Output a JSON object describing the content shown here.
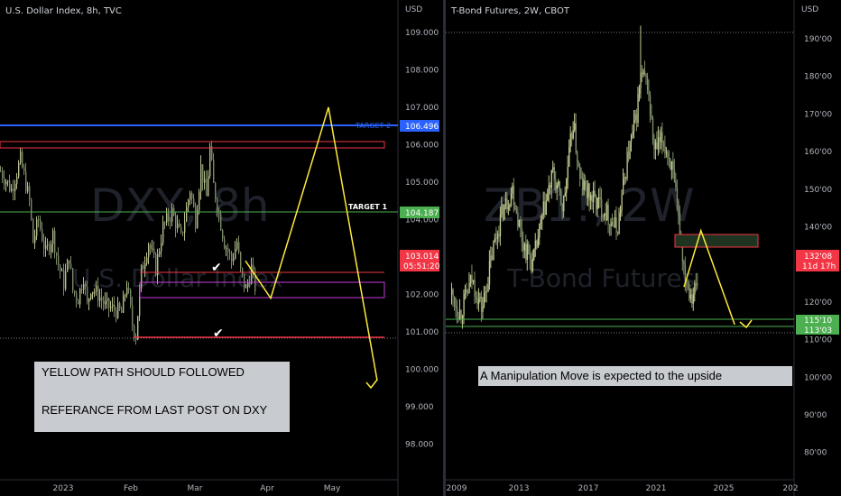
{
  "left_chart": {
    "title": "U.S. Dollar Index, 8h, TVC",
    "currency": "USD",
    "watermark": "DXY, 8h",
    "watermark_sub": "U.S. Dollar Index",
    "y_ticks": [
      "109.000",
      "108.000",
      "107.000",
      "106.000",
      "105.000",
      "104.000",
      "103.000",
      "102.000",
      "101.000",
      "100.000",
      "99.000",
      "98.000"
    ],
    "x_ticks": [
      "2023",
      "Feb",
      "Mar",
      "Apr",
      "May"
    ],
    "target2_label": "TARGET  2",
    "target2_price": "106.496",
    "target1_label": "TARGET  1",
    "target1_price": "104.187",
    "last_price": "103.014",
    "countdown": "05:51:20",
    "note_line1": "YELLOW PATH SHOULD FOLLOWED",
    "note_line2": "REFERANCE FROM LAST POST ON DXY",
    "colors": {
      "target2": "#2962ff",
      "target1": "#4caf50",
      "last": "#f23645",
      "path": "#ffeb3b",
      "zone": "#9c27b0"
    }
  },
  "right_chart": {
    "title": "T-Bond Futures, 2W, CBOT",
    "currency": "USD",
    "watermark": "ZB1!, 2W",
    "watermark_sub": "T-Bond Futures",
    "y_ticks": [
      "190'00",
      "180'00",
      "170'00",
      "160'00",
      "150'00",
      "140'00",
      "130'00",
      "120'00",
      "110'00",
      "100'00",
      "90'00",
      "80'00"
    ],
    "x_ticks": [
      "2009",
      "2013",
      "2017",
      "2021",
      "2025",
      "202"
    ],
    "last_price": "132'08",
    "countdown": "11d 17h",
    "level1": "115'10",
    "level2": "113'03",
    "note": "A Manipulation Move is expected to the upside",
    "colors": {
      "level": "#4caf50",
      "last": "#f23645",
      "path": "#ffeb3b"
    }
  },
  "chart_data": [
    {
      "type": "line",
      "title": "U.S. Dollar Index, 8h, TVC",
      "ylabel": "USD",
      "ylim": [
        97.3,
        109.5
      ],
      "categories": [
        "2023",
        "Feb",
        "Mar",
        "Apr",
        "May"
      ],
      "series": [
        {
          "name": "",
          "x": [
            0,
            12,
            22,
            32,
            36,
            42,
            50,
            58,
            64,
            70,
            76,
            80,
            86,
            92,
            96,
            100,
            108,
            116,
            126,
            134,
            140,
            146,
            150,
            152,
            156,
            164,
            172,
            180,
            190,
            200,
            210,
            216,
            222,
            228,
            232,
            236,
            240,
            248,
            256,
            262,
            266,
            272,
            278,
            282
          ],
          "y": [
            105.3,
            104.8,
            105.6,
            104.5,
            103.4,
            104.0,
            103.1,
            103.6,
            102.8,
            102.3,
            103.0,
            102.1,
            101.9,
            102.5,
            101.7,
            102.2,
            102.0,
            101.7,
            101.6,
            101.5,
            102.3,
            101.2,
            100.9,
            101.5,
            102.6,
            103.4,
            102.7,
            103.8,
            104.2,
            103.5,
            104.8,
            104.0,
            105.4,
            104.6,
            105.9,
            104.9,
            104.4,
            103.4,
            102.9,
            103.4,
            102.6,
            102.1,
            102.7,
            102.2
          ]
        },
        {
          "name": "",
          "x": [
            272,
            300,
            364,
            418
          ],
          "y": [
            102.9,
            101.9,
            107.0,
            99.7
          ]
        }
      ],
      "annotations": [
        "TARGET  2",
        "TARGET  1"
      ]
    },
    {
      "type": "line",
      "title": "T-Bond Futures, 2W, CBOT",
      "ylabel": "USD",
      "ylim": [
        72,
        195
      ],
      "categories": [
        "2009",
        "2013",
        "2017",
        "2021",
        "2025",
        "202"
      ],
      "series": [
        {
          "name": "",
          "x": [
            2009.0,
            2009.5,
            2010.2,
            2010.8,
            2011.5,
            2012.0,
            2012.6,
            2013.2,
            2013.8,
            2014.5,
            2015.0,
            2015.6,
            2016.2,
            2016.6,
            2017.2,
            2018.0,
            2018.8,
            2019.4,
            2019.9,
            2020.2,
            2020.6,
            2021.0,
            2021.5,
            2022.0,
            2022.5,
            2022.8,
            2023.2,
            2023.6
          ],
          "y": [
            122,
            117,
            126,
            118,
            135,
            144,
            150,
            136,
            130,
            145,
            154,
            145,
            168,
            152,
            148,
            145,
            139,
            158,
            168,
            180,
            178,
            160,
            163,
            157,
            140,
            128,
            122,
            125
          ]
        },
        {
          "name": "",
          "x": [
            2022.8,
            2023.8,
            2025.8
          ],
          "y": [
            124,
            139,
            114
          ]
        }
      ],
      "annotations": [
        "115'10",
        "113'03"
      ]
    }
  ]
}
